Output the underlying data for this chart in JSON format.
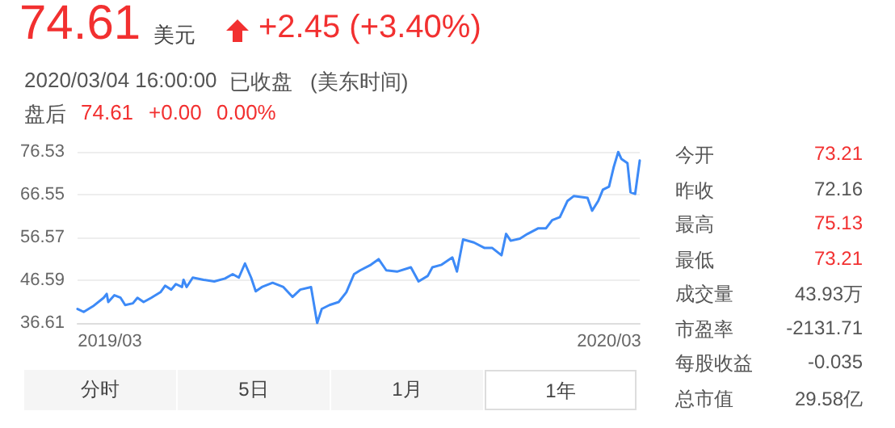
{
  "chart_data": {
    "type": "line",
    "title": "74.61",
    "annotations": [
      "美元",
      "+2.45 (+3.40%)",
      "2020/03/04 16:00:00",
      "已收盘",
      "(美东时间)",
      "盘后",
      "74.61",
      "+0.00",
      "0.00%",
      "今开",
      "73.21",
      "昨收",
      "72.16",
      "最高",
      "75.13",
      "最低",
      "73.21",
      "成交量",
      "43.93万",
      "市盈率",
      "-2131.71",
      "每股收益",
      "-0.035",
      "总市值",
      "29.58亿",
      "分时",
      "5日",
      "1月",
      "1年"
    ],
    "x": [
      "2019-03-04",
      "2019-03-08",
      "2019-03-14",
      "2019-03-21",
      "2019-03-23",
      "2019-03-24",
      "2019-03-28",
      "2019-04-01",
      "2019-04-04",
      "2019-04-09",
      "2019-04-12",
      "2019-04-16",
      "2019-04-21",
      "2019-04-27",
      "2019-04-30",
      "2019-05-04",
      "2019-05-07",
      "2019-05-11",
      "2019-05-12",
      "2019-05-14",
      "2019-05-18",
      "2019-05-25",
      "2019-06-01",
      "2019-06-08",
      "2019-06-13",
      "2019-06-17",
      "2019-06-21",
      "2019-06-25",
      "2019-06-28",
      "2019-07-02",
      "2019-07-09",
      "2019-07-16",
      "2019-07-22",
      "2019-07-27",
      "2019-08-03",
      "2019-08-07",
      "2019-08-10",
      "2019-08-15",
      "2019-08-21",
      "2019-08-26",
      "2019-08-31",
      "2019-09-04",
      "2019-09-11",
      "2019-09-16",
      "2019-09-21",
      "2019-09-28",
      "2019-10-07",
      "2019-10-12",
      "2019-10-18",
      "2019-10-21",
      "2019-10-27",
      "2019-11-03",
      "2019-11-06",
      "2019-11-10",
      "2019-11-17",
      "2019-11-24",
      "2019-11-29",
      "2019-12-05",
      "2019-12-08",
      "2019-12-11",
      "2019-12-17",
      "2019-12-22",
      "2019-12-29",
      "2020-01-03",
      "2020-01-07",
      "2020-01-12",
      "2020-01-17",
      "2020-01-21",
      "2020-01-30",
      "2020-02-02",
      "2020-02-06",
      "2020-02-09",
      "2020-02-13",
      "2020-02-16",
      "2020-02-19",
      "2020-02-21",
      "2020-02-25",
      "2020-02-27",
      "2020-03-01",
      "2020-03-04"
    ],
    "series": [
      {
        "color": "#3d8af7",
        "values": [
          39.9,
          39.2,
          40.5,
          42.5,
          43.4,
          41.5,
          43.1,
          42.5,
          40.8,
          41.2,
          42.5,
          41.5,
          42.5,
          43.8,
          45.3,
          44.4,
          45.7,
          45.0,
          46.7,
          45.0,
          47.2,
          46.7,
          46.3,
          47.0,
          48.0,
          47.2,
          50.5,
          47.2,
          44.0,
          45.0,
          46.0,
          45.0,
          42.7,
          44.4,
          45.0,
          36.61,
          39.9,
          40.8,
          41.5,
          43.8,
          48.0,
          48.9,
          50.2,
          51.5,
          48.9,
          48.6,
          49.6,
          46.3,
          47.6,
          49.6,
          50.2,
          51.9,
          48.6,
          56.1,
          55.4,
          54.1,
          54.1,
          52.4,
          57.4,
          55.8,
          56.3,
          57.4,
          58.7,
          58.7,
          60.6,
          61.3,
          65.1,
          66.2,
          65.8,
          62.8,
          65.1,
          67.7,
          68.4,
          72.9,
          76.5,
          74.9,
          73.9,
          67.1,
          66.7,
          74.5
        ]
      }
    ],
    "xlim": [
      "2019-03-04",
      "2020-03-04"
    ],
    "xticks": [
      {
        "value": "2019-03-25",
        "label": "2019/03"
      },
      {
        "value": "2020-02-13",
        "label": "2020/03"
      }
    ],
    "ylim": [
      36.61,
      76.53
    ],
    "yticks": [
      36.61,
      46.59,
      56.57,
      66.55,
      76.53
    ],
    "grid": "y",
    "marker": "none",
    "line_style": "solid"
  }
}
